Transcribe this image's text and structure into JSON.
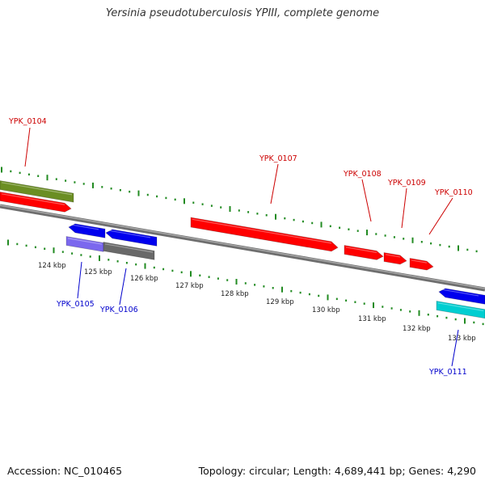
{
  "title": "Yersinia pseudotuberculosis YPIII, complete genome",
  "footer": {
    "accession": "Accession: NC_010465",
    "summary": "Topology: circular; Length: 4,689,441 bp; Genes: 4,290"
  },
  "colors": {
    "forward_gene": "#ff0000",
    "reverse_gene": "#0000ee",
    "olive_feature": "#6b8e23",
    "purple_feature": "#7b68ee",
    "gray_feature": "#696969",
    "cyan_feature": "#00ced1",
    "backbone": "#8c8c8c",
    "ticks": "#228b22",
    "forward_label": "#cc0000",
    "reverse_label": "#0000cc"
  },
  "axis_labels": [
    "124 kbp",
    "125 kbp",
    "126 kbp",
    "127 kbp",
    "128 kbp",
    "129 kbp",
    "130 kbp",
    "131 kbp",
    "132 kbp",
    "133 kbp"
  ],
  "gene_labels": [
    {
      "text": "YPK_0104",
      "strand": "forward"
    },
    {
      "text": "YPK_0107",
      "strand": "forward"
    },
    {
      "text": "YPK_0108",
      "strand": "forward"
    },
    {
      "text": "YPK_0109",
      "strand": "forward"
    },
    {
      "text": "YPK_0110",
      "strand": "forward"
    },
    {
      "text": "YPK_0105",
      "strand": "reverse"
    },
    {
      "text": "YPK_0106",
      "strand": "reverse"
    },
    {
      "text": "YPK_0111",
      "strand": "reverse"
    }
  ]
}
